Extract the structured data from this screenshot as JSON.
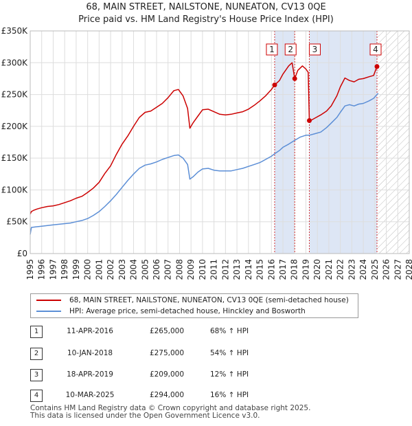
{
  "titles": {
    "line1": "68, MAIN STREET, NAILSTONE, NUNEATON, CV13 0QE",
    "line2": "Price paid vs. HM Land Registry's House Price Index (HPI)"
  },
  "chart_data": {
    "type": "line",
    "title": "68, MAIN STREET, NAILSTONE, NUNEATON, CV13 0QE",
    "subtitle": "Price paid vs. HM Land Registry's House Price Index (HPI)",
    "xlim": [
      1995,
      2028
    ],
    "ylim": [
      0,
      350000
    ],
    "xticks": [
      1995,
      1996,
      1997,
      1998,
      1999,
      2000,
      2001,
      2002,
      2003,
      2004,
      2005,
      2006,
      2007,
      2008,
      2009,
      2010,
      2011,
      2012,
      2013,
      2014,
      2015,
      2016,
      2017,
      2018,
      2019,
      2020,
      2021,
      2022,
      2023,
      2024,
      2025,
      2026,
      2027,
      2028
    ],
    "yticks": [
      {
        "value": 0,
        "label": "£0"
      },
      {
        "value": 50000,
        "label": "£50K"
      },
      {
        "value": 100000,
        "label": "£100K"
      },
      {
        "value": 150000,
        "label": "£150K"
      },
      {
        "value": 200000,
        "label": "£200K"
      },
      {
        "value": 250000,
        "label": "£250K"
      },
      {
        "value": 300000,
        "label": "£300K"
      },
      {
        "value": 350000,
        "label": "£350K"
      }
    ],
    "grid": true,
    "future_hatch_from": 2025.19,
    "colors": {
      "property": "#cc0000",
      "hpi": "#5b8ed6",
      "shade": "#dde6f5",
      "marker_line": "#cc0000"
    },
    "series": [
      {
        "name": "68, MAIN STREET, NAILSTONE, NUNEATON, CV13 0QE (semi-detached house)",
        "color": "#cc0000",
        "points": [
          [
            1995.0,
            62000
          ],
          [
            1995.1,
            66000
          ],
          [
            1995.3,
            68000
          ],
          [
            1995.6,
            70000
          ],
          [
            1996.0,
            72000
          ],
          [
            1996.5,
            74000
          ],
          [
            1997.0,
            75000
          ],
          [
            1997.5,
            77000
          ],
          [
            1998.0,
            80000
          ],
          [
            1998.5,
            83000
          ],
          [
            1999.0,
            87000
          ],
          [
            1999.5,
            90000
          ],
          [
            2000.0,
            96000
          ],
          [
            2000.5,
            103000
          ],
          [
            2001.0,
            112000
          ],
          [
            2001.5,
            126000
          ],
          [
            2002.0,
            138000
          ],
          [
            2002.5,
            156000
          ],
          [
            2003.0,
            172000
          ],
          [
            2003.5,
            185000
          ],
          [
            2004.0,
            200000
          ],
          [
            2004.5,
            214000
          ],
          [
            2005.0,
            222000
          ],
          [
            2005.5,
            224000
          ],
          [
            2006.0,
            230000
          ],
          [
            2006.5,
            236000
          ],
          [
            2007.0,
            245000
          ],
          [
            2007.5,
            256000
          ],
          [
            2007.9,
            258000
          ],
          [
            2008.3,
            248000
          ],
          [
            2008.7,
            228000
          ],
          [
            2008.9,
            197000
          ],
          [
            2009.2,
            206000
          ],
          [
            2009.6,
            216000
          ],
          [
            2010.0,
            226000
          ],
          [
            2010.5,
            227000
          ],
          [
            2011.0,
            223000
          ],
          [
            2011.5,
            219000
          ],
          [
            2012.0,
            218000
          ],
          [
            2012.5,
            219000
          ],
          [
            2013.0,
            221000
          ],
          [
            2013.5,
            223000
          ],
          [
            2014.0,
            227000
          ],
          [
            2014.5,
            233000
          ],
          [
            2015.0,
            240000
          ],
          [
            2015.5,
            248000
          ],
          [
            2016.0,
            258000
          ],
          [
            2016.28,
            265000
          ],
          [
            2016.7,
            272000
          ],
          [
            2017.0,
            282000
          ],
          [
            2017.5,
            295000
          ],
          [
            2017.8,
            300000
          ],
          [
            2018.03,
            275000
          ],
          [
            2018.3,
            288000
          ],
          [
            2018.7,
            295000
          ],
          [
            2019.0,
            290000
          ],
          [
            2019.2,
            285000
          ],
          [
            2019.3,
            209000
          ],
          [
            2019.5,
            210000
          ],
          [
            2019.9,
            214000
          ],
          [
            2020.3,
            218000
          ],
          [
            2020.8,
            224000
          ],
          [
            2021.2,
            232000
          ],
          [
            2021.7,
            248000
          ],
          [
            2022.0,
            262000
          ],
          [
            2022.4,
            276000
          ],
          [
            2022.8,
            272000
          ],
          [
            2023.2,
            270000
          ],
          [
            2023.6,
            274000
          ],
          [
            2024.0,
            275000
          ],
          [
            2024.5,
            278000
          ],
          [
            2024.9,
            280000
          ],
          [
            2025.19,
            294000
          ]
        ]
      },
      {
        "name": "HPI: Average price, semi-detached house, Hinckley and Bosworth",
        "color": "#5b8ed6",
        "points": [
          [
            1995.0,
            30000
          ],
          [
            1995.1,
            41000
          ],
          [
            1995.5,
            42000
          ],
          [
            1996.0,
            43000
          ],
          [
            1996.5,
            44000
          ],
          [
            1997.0,
            45000
          ],
          [
            1997.5,
            46000
          ],
          [
            1998.0,
            47000
          ],
          [
            1998.5,
            48000
          ],
          [
            1999.0,
            50000
          ],
          [
            1999.5,
            52000
          ],
          [
            2000.0,
            55000
          ],
          [
            2000.5,
            60000
          ],
          [
            2001.0,
            66000
          ],
          [
            2001.5,
            74000
          ],
          [
            2002.0,
            83000
          ],
          [
            2002.5,
            93000
          ],
          [
            2003.0,
            104000
          ],
          [
            2003.5,
            115000
          ],
          [
            2004.0,
            125000
          ],
          [
            2004.5,
            134000
          ],
          [
            2005.0,
            139000
          ],
          [
            2005.5,
            141000
          ],
          [
            2006.0,
            144000
          ],
          [
            2006.5,
            148000
          ],
          [
            2007.0,
            151000
          ],
          [
            2007.5,
            154000
          ],
          [
            2007.9,
            155000
          ],
          [
            2008.3,
            150000
          ],
          [
            2008.7,
            140000
          ],
          [
            2008.9,
            117000
          ],
          [
            2009.2,
            121000
          ],
          [
            2009.6,
            128000
          ],
          [
            2010.0,
            133000
          ],
          [
            2010.5,
            134000
          ],
          [
            2011.0,
            131000
          ],
          [
            2011.5,
            130000
          ],
          [
            2012.0,
            130000
          ],
          [
            2012.5,
            130000
          ],
          [
            2013.0,
            132000
          ],
          [
            2013.5,
            134000
          ],
          [
            2014.0,
            137000
          ],
          [
            2014.5,
            140000
          ],
          [
            2015.0,
            143000
          ],
          [
            2015.5,
            148000
          ],
          [
            2016.0,
            153000
          ],
          [
            2016.28,
            157000
          ],
          [
            2016.7,
            162000
          ],
          [
            2017.0,
            167000
          ],
          [
            2017.5,
            172000
          ],
          [
            2018.03,
            178000
          ],
          [
            2018.5,
            183000
          ],
          [
            2019.0,
            186000
          ],
          [
            2019.3,
            186000
          ],
          [
            2019.7,
            188000
          ],
          [
            2020.3,
            191000
          ],
          [
            2020.8,
            198000
          ],
          [
            2021.2,
            205000
          ],
          [
            2021.7,
            214000
          ],
          [
            2022.0,
            222000
          ],
          [
            2022.4,
            232000
          ],
          [
            2022.8,
            234000
          ],
          [
            2023.2,
            232000
          ],
          [
            2023.6,
            235000
          ],
          [
            2024.0,
            236000
          ],
          [
            2024.5,
            240000
          ],
          [
            2024.9,
            244000
          ],
          [
            2025.19,
            250000
          ],
          [
            2025.3,
            252000
          ]
        ]
      }
    ],
    "transactions": [
      {
        "id": "1",
        "x": 2016.28,
        "y": 265000
      },
      {
        "id": "2",
        "x": 2018.03,
        "y": 275000
      },
      {
        "id": "3",
        "x": 2019.3,
        "y": 209000
      },
      {
        "id": "4",
        "x": 2025.19,
        "y": 294000
      }
    ]
  },
  "legend": {
    "property": "68, MAIN STREET, NAILSTONE, NUNEATON, CV13 0QE (semi-detached house)",
    "hpi": "HPI: Average price, semi-detached house, Hinckley and Bosworth"
  },
  "table": [
    {
      "id": "1",
      "date": "11-APR-2016",
      "price": "£265,000",
      "hpi": "68% ↑ HPI"
    },
    {
      "id": "2",
      "date": "10-JAN-2018",
      "price": "£275,000",
      "hpi": "54% ↑ HPI"
    },
    {
      "id": "3",
      "date": "18-APR-2019",
      "price": "£209,000",
      "hpi": "12% ↑ HPI"
    },
    {
      "id": "4",
      "date": "10-MAR-2025",
      "price": "£294,000",
      "hpi": "16% ↑ HPI"
    }
  ],
  "footer": {
    "line1": "Contains HM Land Registry data © Crown copyright and database right 2025.",
    "line2": "This data is licensed under the Open Government Licence v3.0."
  }
}
